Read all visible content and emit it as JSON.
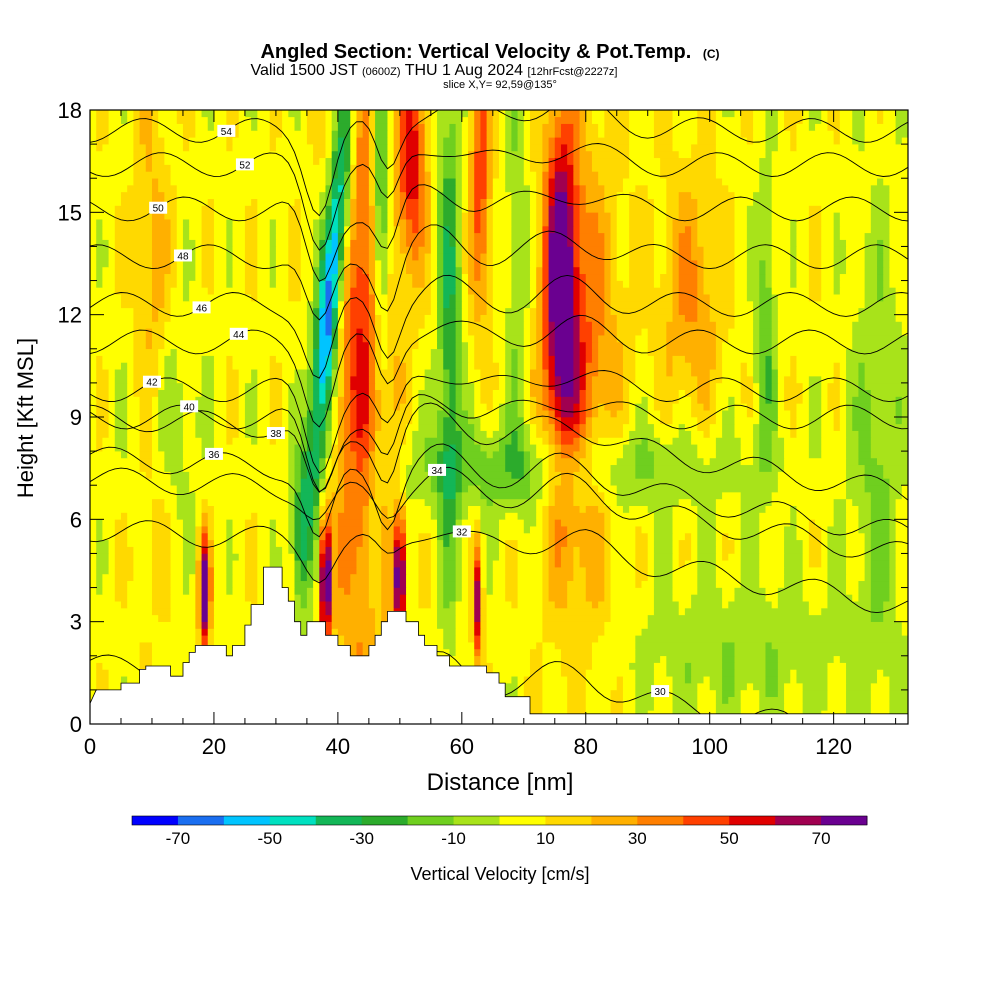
{
  "chart_data": {
    "type": "heatmap",
    "title": "Angled Section: Vertical Velocity & Pot.Temp.",
    "title_unit": "(C)",
    "subtitle_prefix": "Valid 1500 JST",
    "subtitle_zulu": "(0600Z)",
    "subtitle_date": "THU 1 Aug 2024",
    "subtitle_run": "[12hrFcst@2227z]",
    "slice_label": "slice X,Y= 92,59@135°",
    "xlabel": "Distance [nm]",
    "ylabel": "Height [Kft MSL]",
    "xlim": [
      0,
      132
    ],
    "ylim": [
      0,
      18
    ],
    "x_ticks": [
      "0",
      "20",
      "40",
      "60",
      "80",
      "100",
      "120"
    ],
    "y_ticks": [
      "0",
      "3",
      "6",
      "9",
      "12",
      "15",
      "18"
    ],
    "colorbar_label": "Vertical Velocity [cm/s]",
    "colorbar_ticks": [
      "-70",
      "-50",
      "-30",
      "-10",
      "10",
      "30",
      "50",
      "70"
    ],
    "colorbar_levels": [
      -80,
      -70,
      -60,
      -50,
      -40,
      -30,
      -20,
      -10,
      0,
      10,
      20,
      30,
      40,
      50,
      60,
      70,
      80
    ],
    "colorbar_colors": [
      "#0000ff",
      "#1a6ef0",
      "#00c4ff",
      "#00e0c0",
      "#13b657",
      "#2cab2c",
      "#6fcf1f",
      "#a8e31a",
      "#ffff00",
      "#ffd900",
      "#ffb000",
      "#ff7f00",
      "#ff4000",
      "#e00000",
      "#a00050",
      "#6a0090"
    ],
    "terrain": [
      [
        0,
        0.6
      ],
      [
        1,
        1
      ],
      [
        5,
        1
      ],
      [
        5,
        1.2
      ],
      [
        8,
        1.2
      ],
      [
        8,
        1.6
      ],
      [
        9,
        1.6
      ],
      [
        9,
        1.7
      ],
      [
        13,
        1.7
      ],
      [
        13,
        1.4
      ],
      [
        15,
        1.4
      ],
      [
        15,
        1.8
      ],
      [
        16,
        1.8
      ],
      [
        16,
        2.1
      ],
      [
        17,
        2.1
      ],
      [
        17,
        2.3
      ],
      [
        22,
        2.3
      ],
      [
        22,
        2
      ],
      [
        23,
        2
      ],
      [
        23,
        2.3
      ],
      [
        25,
        2.3
      ],
      [
        25,
        2.9
      ],
      [
        26,
        2.9
      ],
      [
        26,
        3.5
      ],
      [
        28,
        3.5
      ],
      [
        28,
        4.6
      ],
      [
        31,
        4.6
      ],
      [
        31,
        4
      ],
      [
        32,
        4
      ],
      [
        32,
        3.6
      ],
      [
        33,
        3.6
      ],
      [
        33,
        3
      ],
      [
        34,
        3
      ],
      [
        34,
        2.6
      ],
      [
        35,
        2.6
      ],
      [
        35,
        3
      ],
      [
        38,
        3
      ],
      [
        38,
        2.6
      ],
      [
        40,
        2.6
      ],
      [
        40,
        2.3
      ],
      [
        42,
        2.3
      ],
      [
        42,
        2
      ],
      [
        45,
        2
      ],
      [
        45,
        2.3
      ],
      [
        46,
        2.3
      ],
      [
        46,
        2.6
      ],
      [
        47,
        2.6
      ],
      [
        47,
        3
      ],
      [
        48,
        3
      ],
      [
        48,
        3.3
      ],
      [
        51,
        3.3
      ],
      [
        51,
        3
      ],
      [
        53,
        3
      ],
      [
        53,
        2.6
      ],
      [
        54,
        2.6
      ],
      [
        54,
        2.3
      ],
      [
        56,
        2.3
      ],
      [
        56,
        2
      ],
      [
        58,
        2
      ],
      [
        58,
        1.7
      ],
      [
        64,
        1.7
      ],
      [
        64,
        1.5
      ],
      [
        66,
        1.5
      ],
      [
        66,
        1.2
      ],
      [
        67,
        1.2
      ],
      [
        67,
        0.8
      ],
      [
        71,
        0.8
      ],
      [
        71,
        0.3
      ],
      [
        132,
        0.3
      ]
    ],
    "isentropes": [
      {
        "label": "30",
        "base": 0.5,
        "label_x": 92
      },
      {
        "label": "32",
        "base": 4.5,
        "label_x": 60
      },
      {
        "label": "34",
        "base": 6.0,
        "label_x": 56
      },
      {
        "label": "36",
        "base": 6.6,
        "label_x": 20
      },
      {
        "label": "38",
        "base": 7.8,
        "label_x": 30
      },
      {
        "label": "40",
        "base": 9.0,
        "label_x": 16
      },
      {
        "label": "42",
        "base": 9.8,
        "label_x": 10
      },
      {
        "label": "44",
        "base": 11.2,
        "label_x": 24
      },
      {
        "label": "46",
        "base": 12.3,
        "label_x": 18
      },
      {
        "label": "48",
        "base": 13.7,
        "label_x": 15
      },
      {
        "label": "50",
        "base": 15.1,
        "label_x": 11
      },
      {
        "label": "52",
        "base": 16.4,
        "label_x": 25
      },
      {
        "label": "54",
        "base": 17.4,
        "label_x": 22
      }
    ]
  }
}
